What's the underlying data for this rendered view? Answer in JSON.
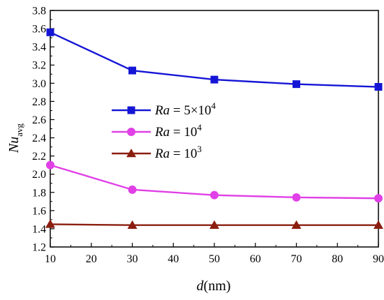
{
  "chart_data": {
    "type": "line",
    "xlabel": {
      "var": "d",
      "unit": "(nm)"
    },
    "ylabel": {
      "var": "Nu",
      "sub": "avg"
    },
    "xlim": [
      10,
      90
    ],
    "ylim": [
      1.2,
      3.8
    ],
    "x_ticks": [
      10,
      20,
      30,
      40,
      50,
      60,
      70,
      80,
      90
    ],
    "y_ticks": [
      1.2,
      1.4,
      1.6,
      1.8,
      2.0,
      2.2,
      2.4,
      2.6,
      2.8,
      3.0,
      3.2,
      3.4,
      3.6,
      3.8
    ],
    "x_tick_labels": [
      "10",
      "20",
      "30",
      "40",
      "50",
      "60",
      "70",
      "80",
      "90"
    ],
    "y_tick_labels": [
      "1.2",
      "1.4",
      "1.6",
      "1.8",
      "2.0",
      "2.2",
      "2.4",
      "2.6",
      "2.8",
      "3.0",
      "3.2",
      "3.4",
      "3.6",
      "3.8"
    ],
    "x": [
      10,
      30,
      50,
      70,
      90
    ],
    "grid": false,
    "legend_position": "center-left",
    "series": [
      {
        "name": "Ra = 5×10^4",
        "label_var": "Ra",
        "label_base": " = 5×10",
        "label_exp": "4",
        "marker": "square",
        "color": "#1515d6",
        "values": [
          3.56,
          3.14,
          3.04,
          2.99,
          2.96
        ]
      },
      {
        "name": "Ra = 10^4",
        "label_var": "Ra",
        "label_base": " = 10",
        "label_exp": "4",
        "marker": "circle",
        "color": "#e040e6",
        "values": [
          2.1,
          1.83,
          1.77,
          1.745,
          1.735
        ]
      },
      {
        "name": "Ra = 10^3",
        "label_var": "Ra",
        "label_base": " = 10",
        "label_exp": "3",
        "marker": "triangle",
        "color": "#8b1e10",
        "values": [
          1.45,
          1.44,
          1.44,
          1.44,
          1.44
        ]
      }
    ]
  }
}
